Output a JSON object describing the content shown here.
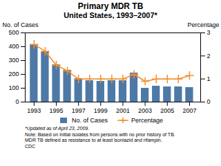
{
  "chart_data": {
    "type": "bar",
    "title": "Primary MDR TB",
    "subtitle": "United States, 1993–2007*",
    "x": [
      1993,
      1994,
      1995,
      1996,
      1997,
      1998,
      1999,
      2000,
      2001,
      2002,
      2003,
      2004,
      2005,
      2006,
      2007
    ],
    "series": [
      {
        "name": "No. of Cases",
        "type": "bar",
        "values": [
          415,
          360,
          270,
          230,
          170,
          155,
          150,
          155,
          155,
          210,
          100,
          115,
          110,
          110,
          105
        ]
      },
      {
        "name": "Percentage",
        "type": "line",
        "marker": "plus",
        "axis": "y2",
        "values": [
          2.5,
          2.2,
          1.6,
          1.35,
          1.0,
          1.0,
          1.0,
          1.0,
          1.0,
          1.2,
          0.9,
          1.0,
          1.0,
          1.0,
          1.15
        ]
      }
    ],
    "ylabel": "No. of Cases",
    "y2label": "Percentage",
    "xlim": [
      1992.2,
      2008.0
    ],
    "xticks": [
      1993,
      1995,
      1997,
      1999,
      2001,
      2003,
      2005,
      2007
    ],
    "ylim": [
      0,
      500
    ],
    "yticks": [
      0,
      100,
      200,
      300,
      400,
      500
    ],
    "y2lim": [
      0,
      3
    ],
    "y2ticks": [
      0,
      1,
      2,
      3
    ],
    "legend": "bottom",
    "annotations": [
      "*Updated as of April 23, 2009.",
      "Note: Based on initial isolates from persons with no prior history of TB.",
      "MDR TB defined as resistance to at least isoniazid and rifampin.",
      "CDC"
    ]
  }
}
